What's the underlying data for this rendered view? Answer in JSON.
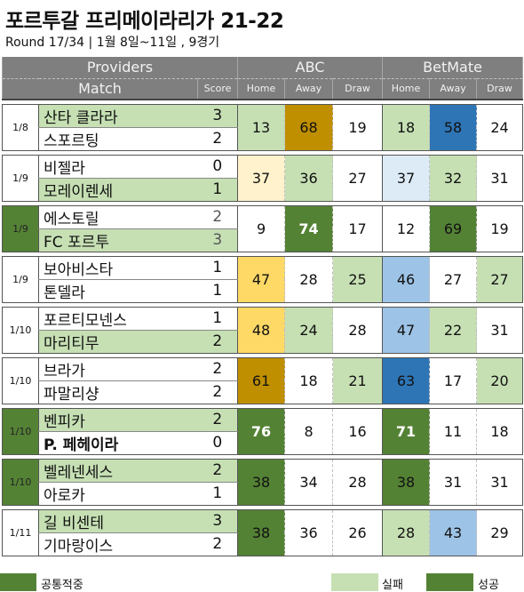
{
  "title": "포르투갈 프리메이라리가 21-22",
  "subtitle": "Round 17/34 | 1월 8일~11일 , 9경기",
  "header": {
    "providers": "Providers",
    "match": "Match",
    "score": "Score",
    "abc": "ABC",
    "betmate": "BetMate",
    "home": "Home",
    "away": "Away",
    "draw": "Draw"
  },
  "matches": [
    {
      "date": "1/8",
      "home": "산타 클라라",
      "away": "스포르팅",
      "home_score": "3",
      "away_score": "2",
      "abc": [
        "13",
        "68",
        "19"
      ],
      "betmate": [
        "18",
        "58",
        "24"
      ]
    },
    {
      "date": "1/9",
      "home": "비젤라",
      "away": "모레이렌세",
      "home_score": "0",
      "away_score": "1",
      "abc": [
        "37",
        "36",
        "27"
      ],
      "betmate": [
        "37",
        "32",
        "31"
      ]
    },
    {
      "date": "1/9",
      "home": "에스토릴",
      "away": "FC 포르투",
      "home_score": "2",
      "away_score": "3",
      "abc": [
        "9",
        "74",
        "17"
      ],
      "betmate": [
        "12",
        "69",
        "19"
      ]
    },
    {
      "date": "1/9",
      "home": "보아비스타",
      "away": "톤델라",
      "home_score": "1",
      "away_score": "1",
      "abc": [
        "47",
        "28",
        "25"
      ],
      "betmate": [
        "46",
        "27",
        "27"
      ]
    },
    {
      "date": "1/10",
      "home": "포르티모넨스",
      "away": "마리티무",
      "home_score": "1",
      "away_score": "2",
      "abc": [
        "48",
        "24",
        "28"
      ],
      "betmate": [
        "47",
        "22",
        "31"
      ]
    },
    {
      "date": "1/10",
      "home": "브라가",
      "away": "파말리샹",
      "home_score": "2",
      "away_score": "2",
      "abc": [
        "61",
        "18",
        "21"
      ],
      "betmate": [
        "63",
        "17",
        "20"
      ]
    },
    {
      "date": "1/10",
      "home": "벤피카",
      "away": "P. 페헤이라",
      "home_score": "2",
      "away_score": "0",
      "abc": [
        "76",
        "8",
        "16"
      ],
      "betmate": [
        "71",
        "11",
        "18"
      ]
    },
    {
      "date": "1/10",
      "home": "벨레넨세스",
      "away": "아로카",
      "home_score": "2",
      "away_score": "1",
      "abc": [
        "38",
        "34",
        "28"
      ],
      "betmate": [
        "38",
        "31",
        "31"
      ]
    },
    {
      "date": "1/11",
      "home": "길 비센테",
      "away": "기마랑이스",
      "home_score": "3",
      "away_score": "2",
      "abc": [
        "38",
        "36",
        "26"
      ],
      "betmate": [
        "28",
        "43",
        "29"
      ]
    }
  ],
  "legend": {
    "common_hit": "공통적중",
    "fail": "실패",
    "success": "성공"
  },
  "colors": {
    "header_gray": "#7f7f7f",
    "success_green": "#548235",
    "fail_light_green": "#c6e0b4",
    "abc_gold": "#bf8f00",
    "abc_yellow": "#ffd966",
    "abc_cream": "#fff2cc",
    "betmate_blue": "#2e75b6",
    "betmate_light_blue": "#9dc3e6",
    "betmate_pale_blue": "#ddebf7"
  }
}
